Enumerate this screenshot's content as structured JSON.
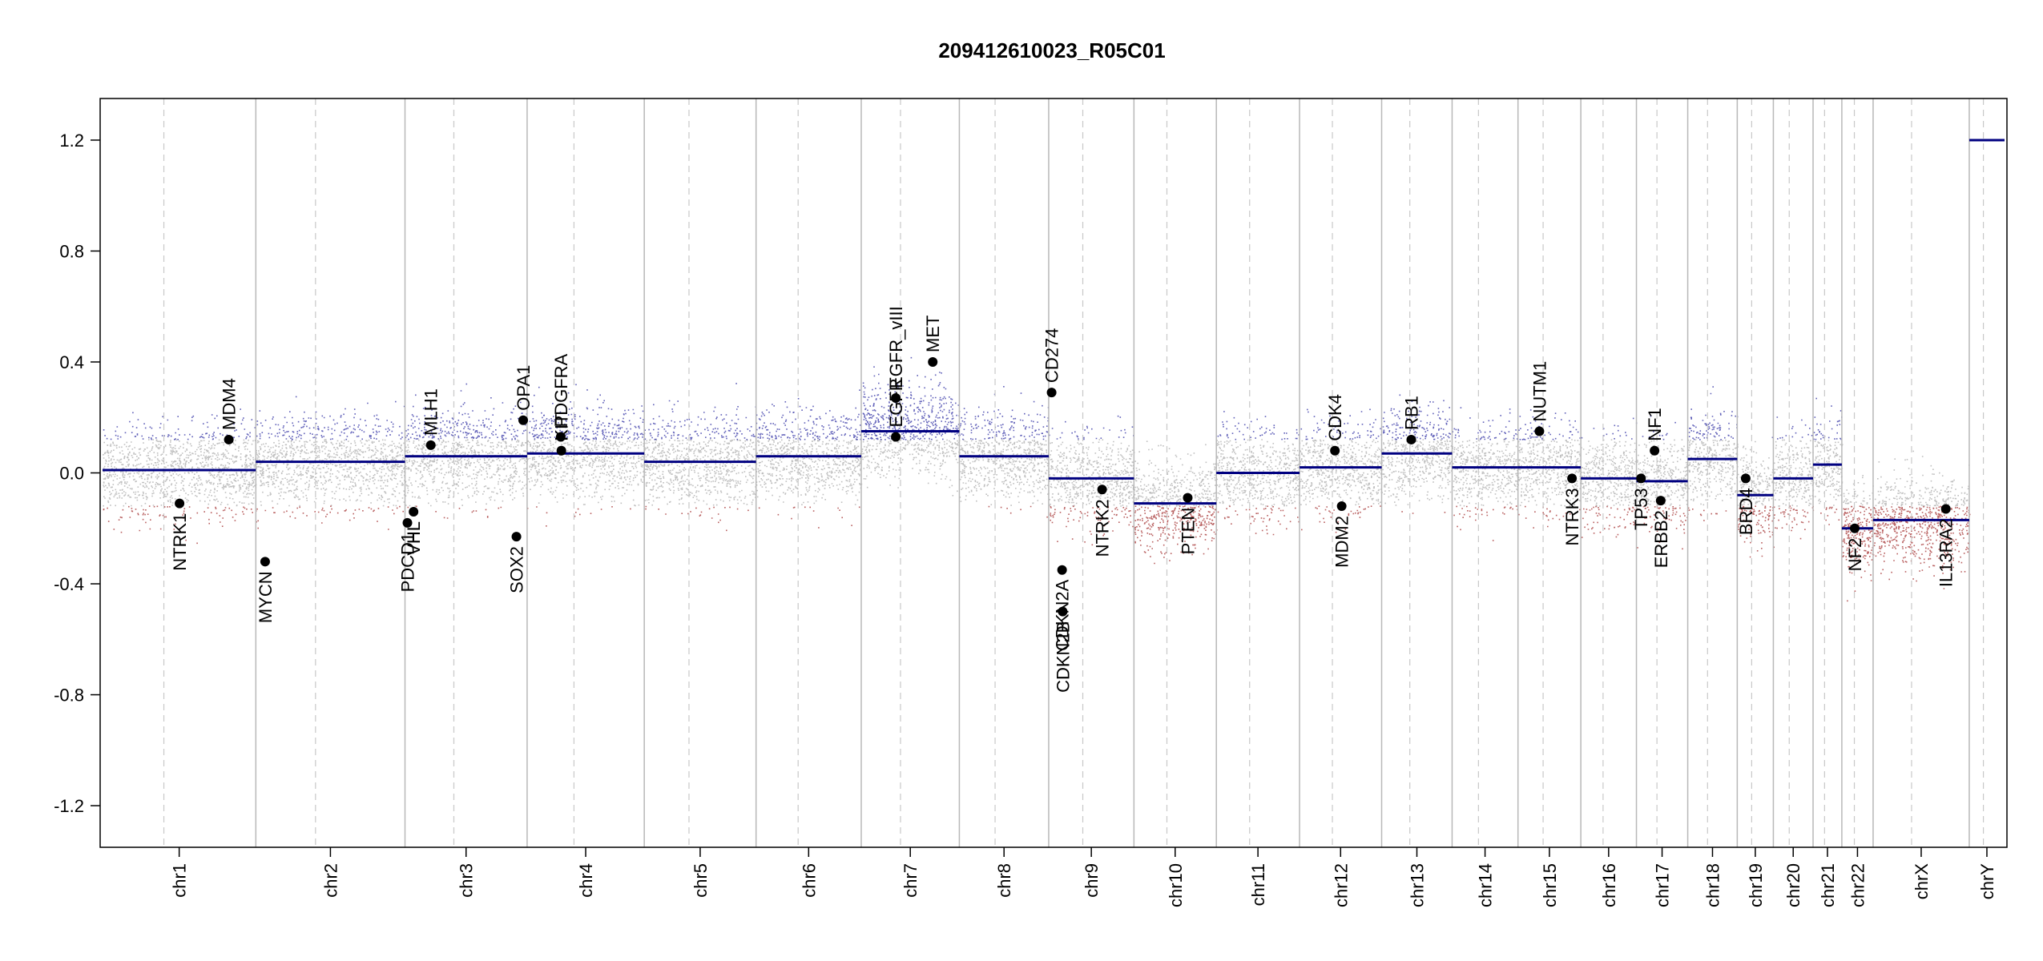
{
  "chart_data": {
    "type": "scatter",
    "title": "209412610023_R05C01",
    "xlabel": "",
    "ylabel": "",
    "ylim": [
      -1.35,
      1.35
    ],
    "yticks": [
      -1.2,
      -0.8,
      -0.4,
      0.0,
      0.4,
      0.8,
      1.2
    ],
    "ytick_labels": [
      "-1.2",
      "-0.8",
      "-0.4",
      "0.0",
      "0.4",
      "0.8",
      "1.2"
    ],
    "grid": false,
    "legend": "none",
    "colors": {
      "gain": "#3a3aa8",
      "loss": "#a83a3a",
      "neutral": "#b0b0b0",
      "segment": "#000080",
      "boundary": "#b8b8b8"
    },
    "chromosomes": [
      {
        "name": "chr1",
        "start": 0,
        "end": 248.9,
        "segment": 0.01
      },
      {
        "name": "chr2",
        "start": 248.9,
        "end": 491.1,
        "segment": 0.04
      },
      {
        "name": "chr3",
        "start": 491.1,
        "end": 689.4,
        "segment": 0.06
      },
      {
        "name": "chr4",
        "start": 689.4,
        "end": 879.6,
        "segment": 0.07
      },
      {
        "name": "chr5",
        "start": 879.6,
        "end": 1061.1,
        "segment": 0.04
      },
      {
        "name": "chr6",
        "start": 1061.1,
        "end": 1231.9,
        "segment": 0.06
      },
      {
        "name": "chr7",
        "start": 1231.9,
        "end": 1391.2,
        "segment": 0.15
      },
      {
        "name": "chr8",
        "start": 1391.2,
        "end": 1536.3,
        "segment": 0.06
      },
      {
        "name": "chr9",
        "start": 1536.3,
        "end": 1674.7,
        "segment": -0.02
      },
      {
        "name": "chr10",
        "start": 1674.7,
        "end": 1808.5,
        "segment": -0.11
      },
      {
        "name": "chr11",
        "start": 1808.5,
        "end": 1943.6,
        "segment": 0.0
      },
      {
        "name": "chr12",
        "start": 1943.6,
        "end": 2076.9,
        "segment": 0.02
      },
      {
        "name": "chr13",
        "start": 2076.9,
        "end": 2191.3,
        "segment": 0.07
      },
      {
        "name": "chr14",
        "start": 2191.3,
        "end": 2298.3,
        "segment": 0.02
      },
      {
        "name": "chr15",
        "start": 2298.3,
        "end": 2400.3,
        "segment": 0.02
      },
      {
        "name": "chr16",
        "start": 2400.3,
        "end": 2490.6,
        "segment": -0.02
      },
      {
        "name": "chr17",
        "start": 2490.6,
        "end": 2573.9,
        "segment": -0.03
      },
      {
        "name": "chr18",
        "start": 2573.9,
        "end": 2654.3,
        "segment": 0.05
      },
      {
        "name": "chr19",
        "start": 2654.3,
        "end": 2712.9,
        "segment": -0.08
      },
      {
        "name": "chr20",
        "start": 2712.9,
        "end": 2777.4,
        "segment": -0.02
      },
      {
        "name": "chr21",
        "start": 2777.4,
        "end": 2824.1,
        "segment": 0.03
      },
      {
        "name": "chr22",
        "start": 2824.1,
        "end": 2874.9,
        "segment": -0.2
      },
      {
        "name": "chrX",
        "start": 2874.9,
        "end": 3031.0,
        "segment": -0.17
      },
      {
        "name": "chrY",
        "start": 3031.0,
        "end": 3088.3,
        "segment": 1.2
      }
    ],
    "genes": [
      {
        "name": "NTRK1",
        "x": 125,
        "y": -0.11,
        "label_side": "below"
      },
      {
        "name": "MDM4",
        "x": 205,
        "y": 0.12,
        "label_side": "above"
      },
      {
        "name": "MYCN",
        "x": 264,
        "y": -0.32,
        "label_side": "below"
      },
      {
        "name": "PDCD1",
        "x": 495,
        "y": -0.18,
        "label_side": "below"
      },
      {
        "name": "VHL",
        "x": 505,
        "y": -0.14,
        "label_side": "below"
      },
      {
        "name": "MLH1",
        "x": 533,
        "y": 0.1,
        "label_side": "above"
      },
      {
        "name": "SOX2",
        "x": 672,
        "y": -0.23,
        "label_side": "below"
      },
      {
        "name": "OPA1",
        "x": 683,
        "y": 0.19,
        "label_side": "above"
      },
      {
        "name": "PDGFRA",
        "x": 744,
        "y": 0.13,
        "label_side": "above"
      },
      {
        "name": "KIT",
        "x": 745,
        "y": 0.08,
        "label_side": "above"
      },
      {
        "name": "EGFR",
        "x": 1288,
        "y": 0.13,
        "label_side": "above"
      },
      {
        "name": "EGFR_vIII",
        "x": 1288,
        "y": 0.27,
        "label_side": "above"
      },
      {
        "name": "MET",
        "x": 1348,
        "y": 0.4,
        "label_side": "above"
      },
      {
        "name": "CD274",
        "x": 1541,
        "y": 0.29,
        "label_side": "above"
      },
      {
        "name": "CDKN2A",
        "x": 1558,
        "y": -0.35,
        "label_side": "below"
      },
      {
        "name": "CDKN2B",
        "x": 1559,
        "y": -0.5,
        "label_side": "below"
      },
      {
        "name": "NTRK2",
        "x": 1623,
        "y": -0.06,
        "label_side": "below"
      },
      {
        "name": "PTEN",
        "x": 1762,
        "y": -0.09,
        "label_side": "below"
      },
      {
        "name": "CDK4",
        "x": 2001,
        "y": 0.08,
        "label_side": "above"
      },
      {
        "name": "MDM2",
        "x": 2012,
        "y": -0.12,
        "label_side": "below"
      },
      {
        "name": "RB1",
        "x": 2125,
        "y": 0.12,
        "label_side": "above"
      },
      {
        "name": "NUTM1",
        "x": 2333,
        "y": 0.15,
        "label_side": "above"
      },
      {
        "name": "NTRK3",
        "x": 2386,
        "y": -0.02,
        "label_side": "below"
      },
      {
        "name": "TP53",
        "x": 2498,
        "y": -0.02,
        "label_side": "below"
      },
      {
        "name": "NF1",
        "x": 2520,
        "y": 0.08,
        "label_side": "above"
      },
      {
        "name": "ERBB2",
        "x": 2530,
        "y": -0.1,
        "label_side": "below"
      },
      {
        "name": "BRD4",
        "x": 2668,
        "y": -0.02,
        "label_side": "below"
      },
      {
        "name": "NF2",
        "x": 2845,
        "y": -0.2,
        "label_side": "below"
      },
      {
        "name": "IL13RA2",
        "x": 2993,
        "y": -0.13,
        "label_side": "below"
      }
    ]
  }
}
